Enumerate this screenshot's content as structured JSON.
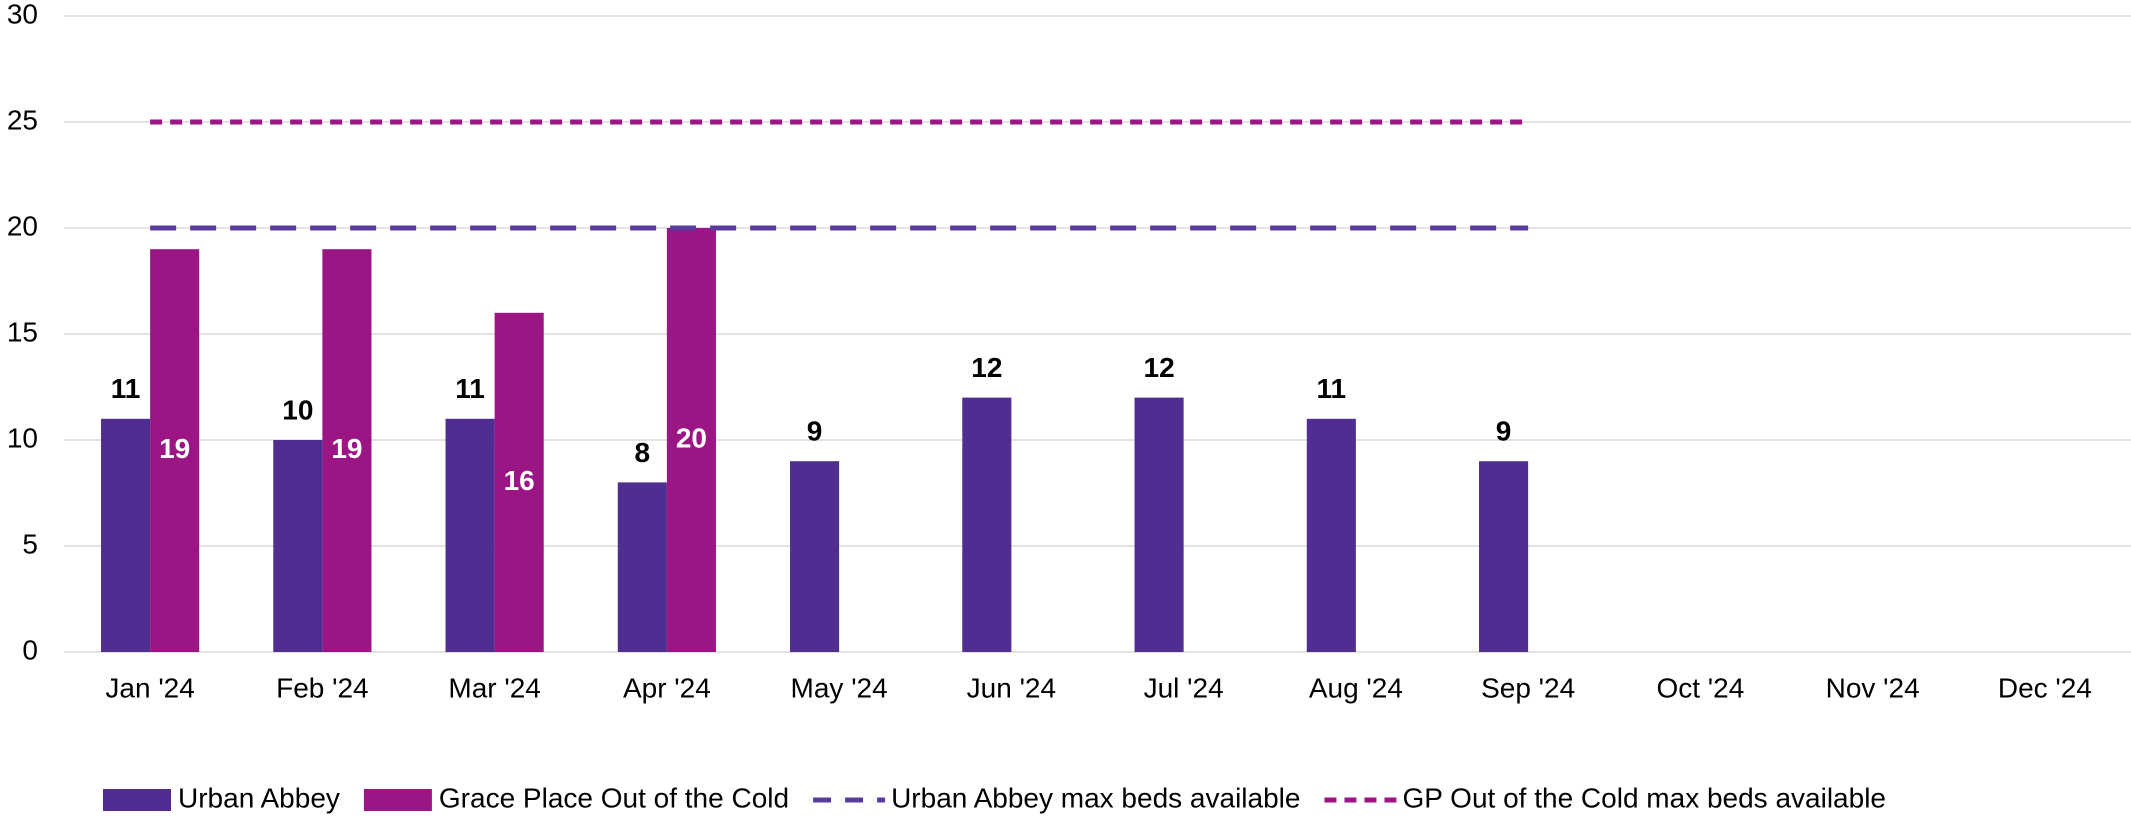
{
  "chart_data": {
    "type": "bar",
    "categories": [
      "Jan '24",
      "Feb '24",
      "Mar '24",
      "Apr '24",
      "May '24",
      "Jun '24",
      "Jul '24",
      "Aug '24",
      "Sep '24",
      "Oct '24",
      "Nov '24",
      "Dec '24"
    ],
    "series": [
      {
        "name": "Urban Abbey",
        "type": "bar",
        "color": "#4f2d91",
        "values": [
          11,
          10,
          11,
          8,
          9,
          12,
          12,
          11,
          9,
          null,
          null,
          null
        ]
      },
      {
        "name": "Grace Place Out of the Cold",
        "type": "bar",
        "color": "#9b1584",
        "values": [
          19,
          19,
          16,
          20,
          null,
          null,
          null,
          null,
          null,
          null,
          null,
          null
        ]
      },
      {
        "name": "Urban Abbey max beds available",
        "type": "line",
        "color": "#5b3a9e",
        "values": [
          20,
          20,
          20,
          20,
          20,
          20,
          20,
          20,
          20,
          null,
          null,
          null
        ]
      },
      {
        "name": "GP Out of the Cold max beds available",
        "type": "line",
        "color": "#9b1584",
        "values": [
          25,
          25,
          25,
          25,
          25,
          25,
          25,
          25,
          25,
          null,
          null,
          null
        ]
      }
    ],
    "ylim": [
      0,
      30
    ],
    "yticks": [
      0,
      5,
      10,
      15,
      20,
      25,
      30
    ],
    "grid": true,
    "legend": "bottom"
  }
}
